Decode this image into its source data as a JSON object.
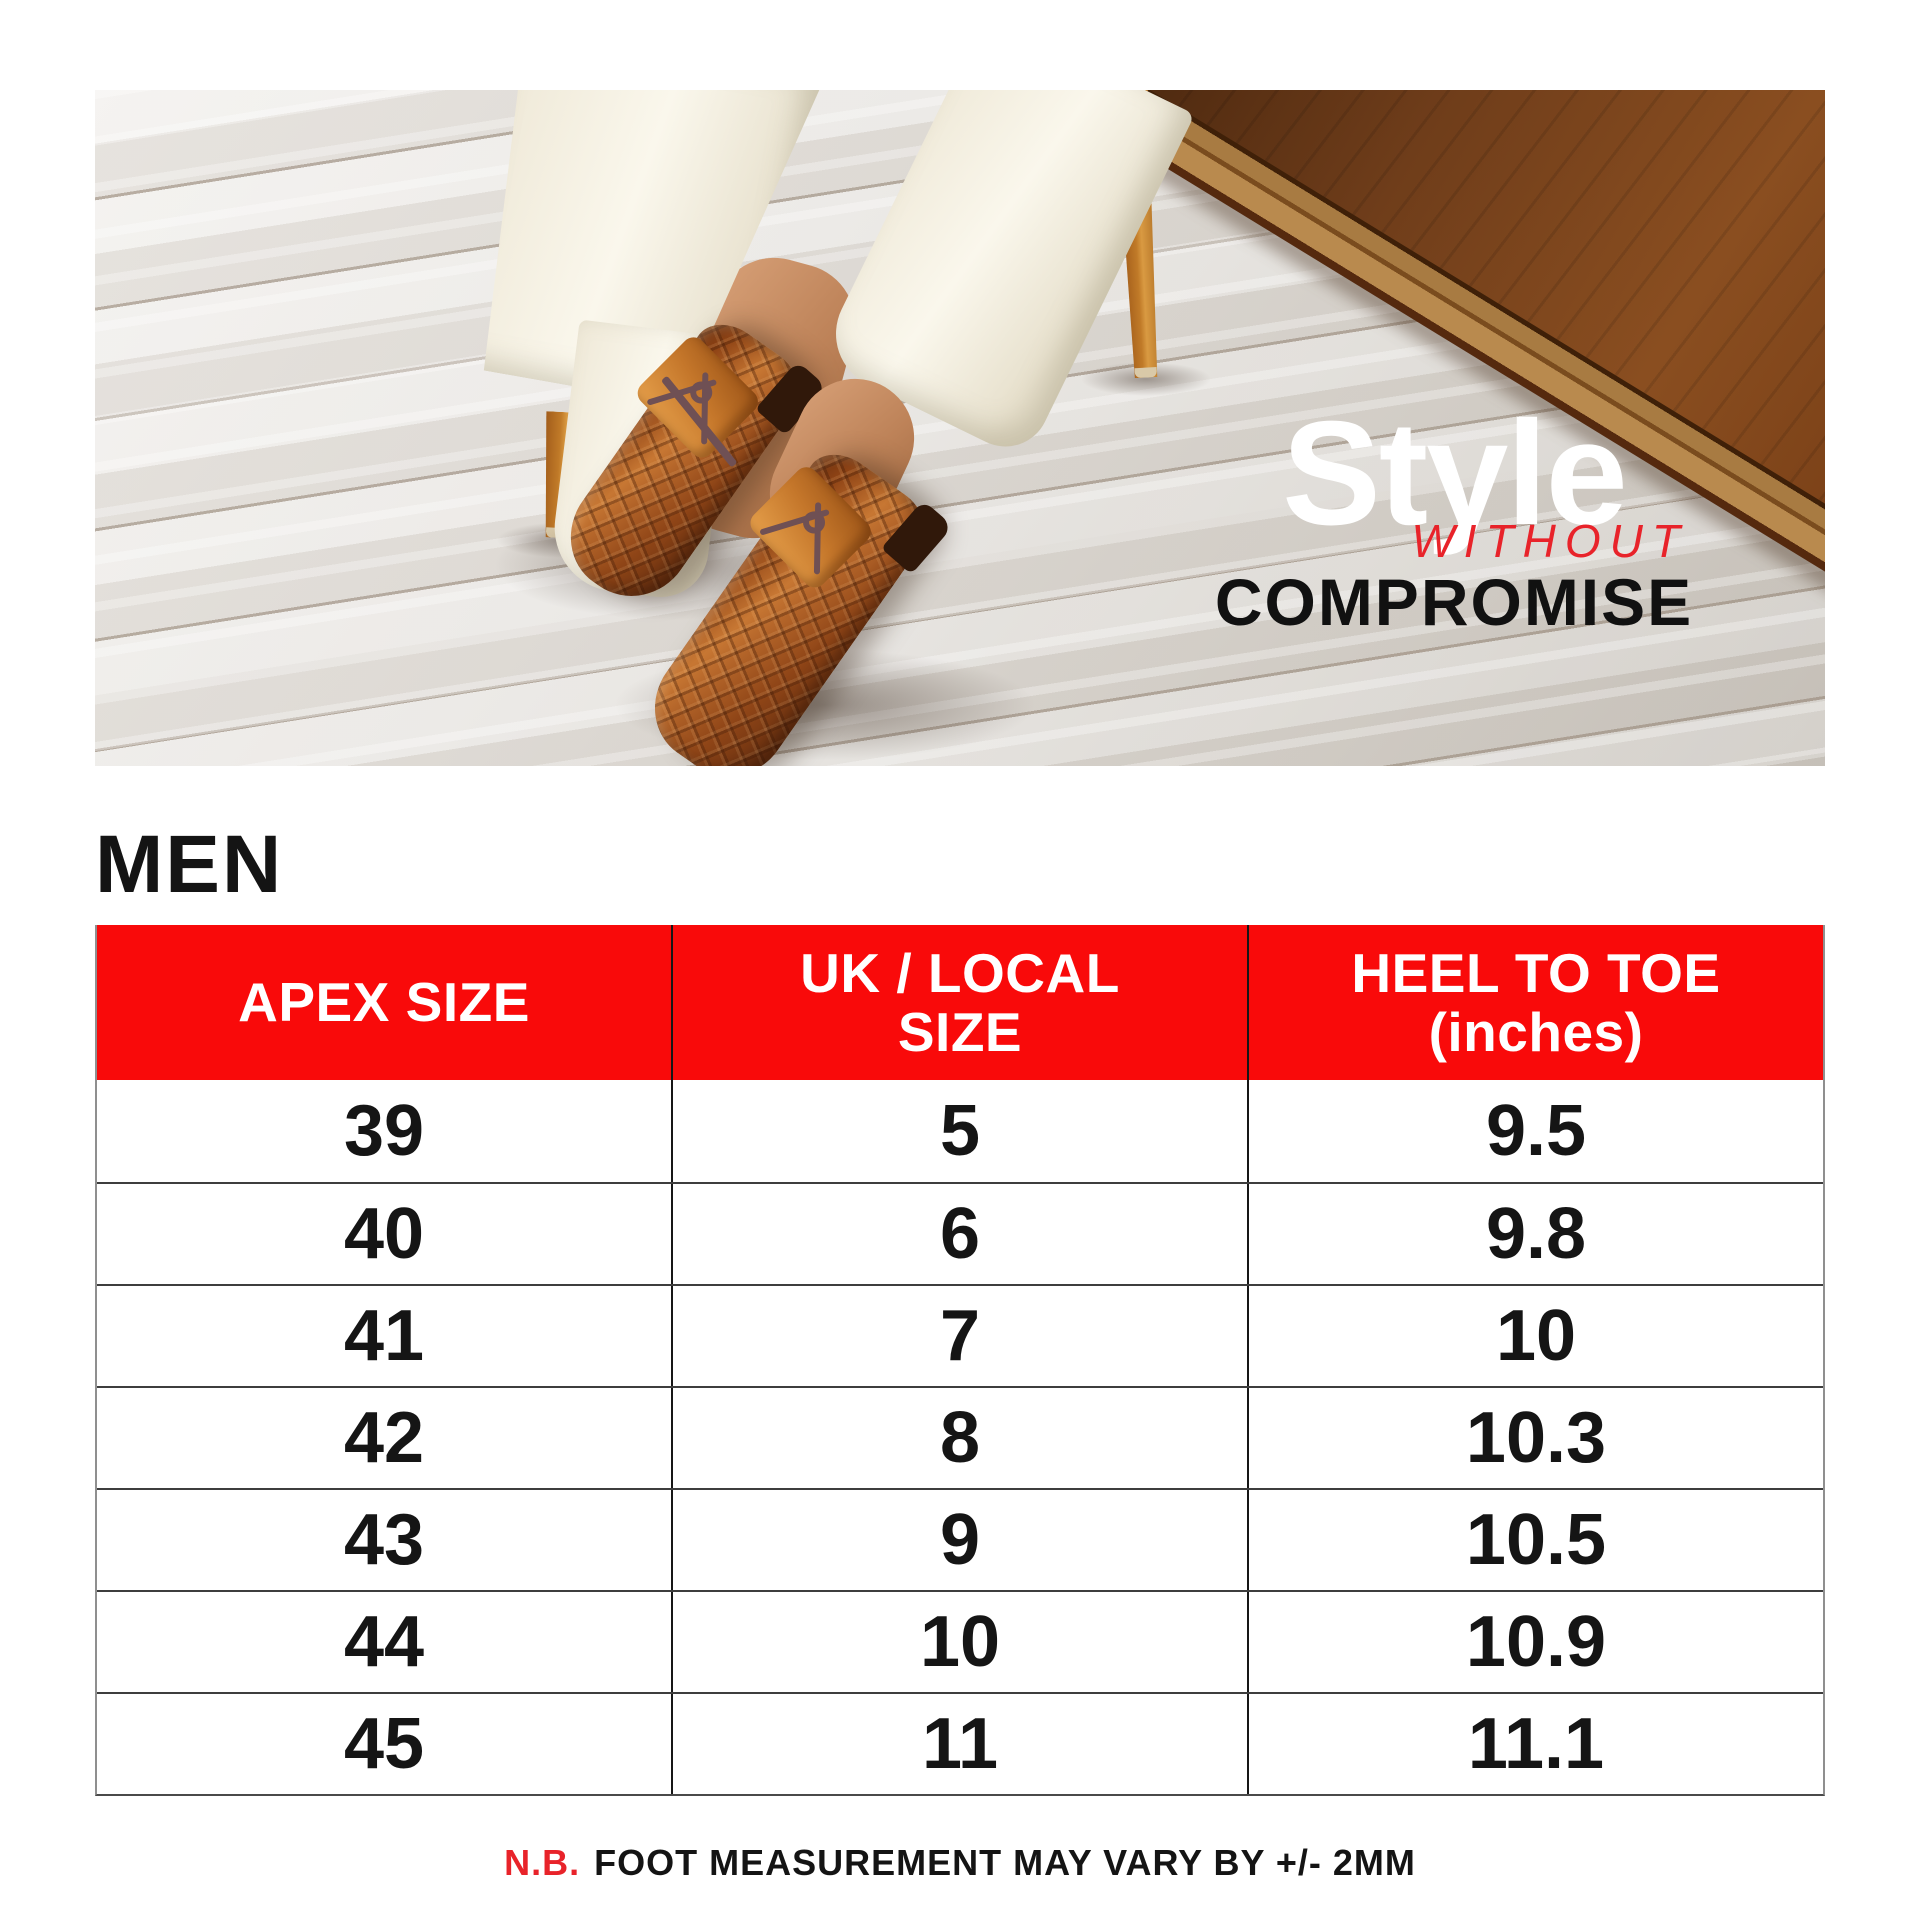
{
  "hero": {
    "tagline": {
      "line1": "Style",
      "line2": "WITHOUT",
      "line3": "COMPROMISE"
    }
  },
  "section_heading": "MEN",
  "table": {
    "columns": [
      {
        "line1": "APEX SIZE",
        "line2": ""
      },
      {
        "line1": "UK / LOCAL",
        "line2": "SIZE"
      },
      {
        "line1": "HEEL TO TOE",
        "line2": "(inches)"
      }
    ],
    "rows": [
      [
        "39",
        "5",
        "9.5"
      ],
      [
        "40",
        "6",
        "9.8"
      ],
      [
        "41",
        "7",
        "10"
      ],
      [
        "42",
        "8",
        "10.3"
      ],
      [
        "43",
        "9",
        "10.5"
      ],
      [
        "44",
        "10",
        "10.9"
      ],
      [
        "45",
        "11",
        "11.1"
      ]
    ]
  },
  "note": {
    "prefix": "N.B.",
    "text": "FOOT MEASUREMENT MAY VARY BY +/- 2MM"
  },
  "colors": {
    "table_header_red": "#F90A0A",
    "accent_red": "#E8232A",
    "text_black": "#141414",
    "header_text_white": "#FFFFFF"
  }
}
